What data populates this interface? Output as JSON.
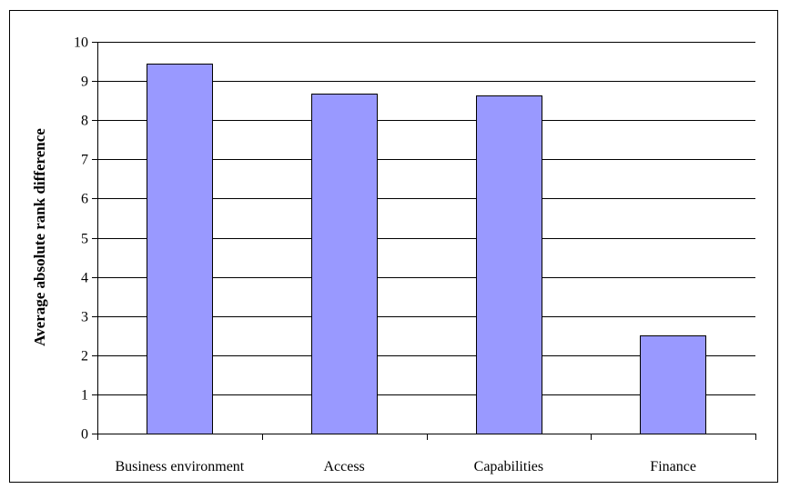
{
  "chart_data": {
    "type": "bar",
    "title": "",
    "xlabel": "",
    "ylabel": "Average absolute rank difference",
    "categories": [
      "Business environment",
      "Access",
      "Capabilities",
      "Finance"
    ],
    "values": [
      9.45,
      8.68,
      8.62,
      2.5
    ],
    "ylim": [
      0,
      10
    ],
    "yticks": [
      0,
      1,
      2,
      3,
      4,
      5,
      6,
      7,
      8,
      9,
      10
    ],
    "grid": true,
    "legend": "none",
    "colors": {
      "bar_fill": "#9999ff",
      "bar_stroke": "#000000",
      "grid": "#000000"
    }
  }
}
